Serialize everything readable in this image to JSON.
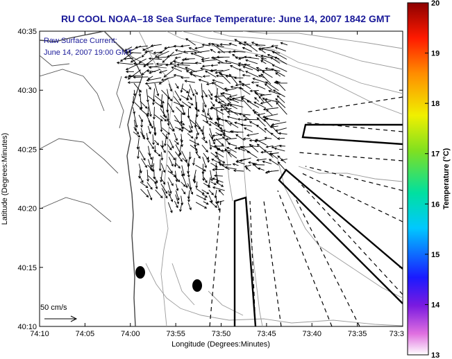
{
  "chart_data": {
    "type": "vector-field",
    "title": "RU COOL   NOAA–18  Sea Surface Temperature:  June 14, 2007 1842 GMT",
    "annotation": [
      "Raw Surface Current:",
      "June 14, 2007 19:00 GMT"
    ],
    "xlabel": "Longitude (Degrees:Minutes)",
    "ylabel": "Latitude (Degrees:Minutes)",
    "x_ticks": [
      "74:10",
      "74:05",
      "74:00",
      "73:55",
      "73:50",
      "73:45",
      "73:40",
      "73:35",
      "73:3"
    ],
    "y_ticks": [
      "40:10",
      "40:15",
      "40:20",
      "40:25",
      "40:30",
      "40:35"
    ],
    "xlim_minutes_west": [
      250,
      210
    ],
    "ylim_minutes_north": [
      2410,
      2435
    ],
    "scale_label": "50 cm/s",
    "colorbar": {
      "label": "Temperature (°C)",
      "range": [
        13,
        20
      ],
      "ticks": [
        "13",
        "14",
        "15",
        "16",
        "17",
        "18",
        "19",
        "20"
      ]
    },
    "colors": {
      "title": "#1a1a99",
      "arrows": "#000000",
      "contours": "#9a9a9a"
    }
  }
}
